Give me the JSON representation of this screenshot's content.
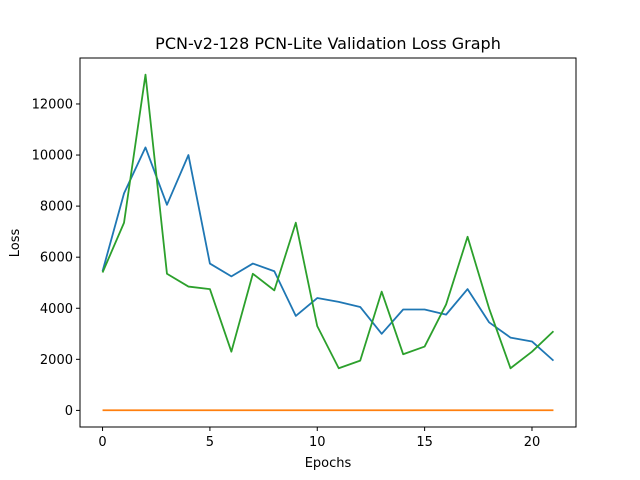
{
  "chart_data": {
    "type": "line",
    "title": "PCN-v2-128 PCN-Lite Validation Loss Graph",
    "xlabel": "Epochs",
    "ylabel": "Loss",
    "xlim": [
      -1.05,
      22.05
    ],
    "ylim": [
      -650,
      13800
    ],
    "xticks": [
      0,
      5,
      10,
      15,
      20
    ],
    "yticks": [
      0,
      2000,
      4000,
      6000,
      8000,
      10000,
      12000
    ],
    "grid": false,
    "x": [
      0,
      1,
      2,
      3,
      4,
      5,
      6,
      7,
      8,
      9,
      10,
      11,
      12,
      13,
      14,
      15,
      16,
      17,
      18,
      19,
      20,
      21
    ],
    "series": [
      {
        "color": "#1f77b4",
        "values": [
          5450,
          8500,
          10300,
          8050,
          10000,
          5750,
          5250,
          5750,
          5450,
          3700,
          4400,
          4250,
          4050,
          3000,
          3950,
          3950,
          3750,
          4750,
          3450,
          2850,
          2700,
          1950
        ]
      },
      {
        "color": "#ff7f0e",
        "values": [
          5,
          5,
          5,
          5,
          5,
          5,
          5,
          5,
          5,
          5,
          5,
          5,
          5,
          5,
          5,
          5,
          5,
          5,
          5,
          5,
          5,
          5
        ]
      },
      {
        "color": "#2ca02c",
        "values": [
          5400,
          7350,
          13150,
          5350,
          4850,
          4750,
          2300,
          5350,
          4700,
          7350,
          3300,
          1650,
          1950,
          4650,
          2200,
          2500,
          4150,
          6800,
          4000,
          1650,
          2300,
          3100
        ]
      }
    ]
  }
}
